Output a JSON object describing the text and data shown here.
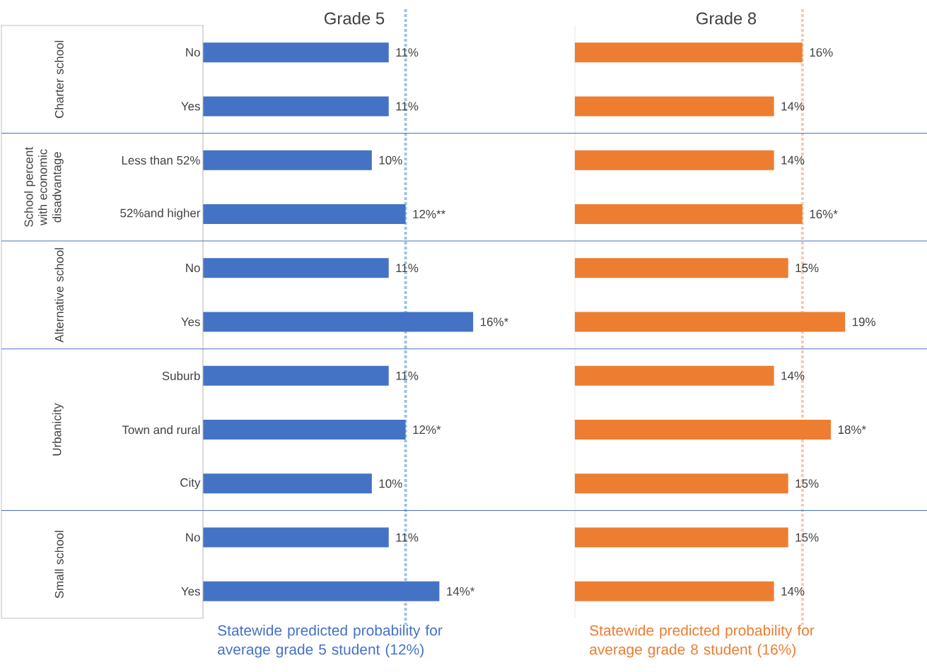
{
  "chart_data": [
    {
      "type": "bar",
      "orientation": "horizontal",
      "title": "Grade 5",
      "categories": [
        "No",
        "Yes",
        "Less than 52%",
        "52%and higher",
        "No",
        "Yes",
        "Suburb",
        "Town and rural",
        "City",
        "No",
        "Yes"
      ],
      "values": [
        11,
        11,
        10,
        12,
        11,
        16,
        11,
        12,
        10,
        11,
        14
      ],
      "value_labels": [
        "11%",
        "11%",
        "10%",
        "12%**",
        "11%",
        "16%*",
        "11%",
        "12%*",
        "10%",
        "11%",
        "14%*"
      ],
      "color": "#4472c4",
      "tick_labels": "y",
      "ref_lines": [
        {
          "axis": "x",
          "value": 12,
          "label": "Statewide predicted probability for average grade 5 student (12%)",
          "color": "#9dc3e6",
          "line_style": "dotted"
        }
      ],
      "annotations": [
        "Charter school",
        "School percent with economic disadvantage",
        "Alternative school",
        "Urbanicity",
        "Small school"
      ]
    },
    {
      "type": "bar",
      "orientation": "horizontal",
      "title": "Grade 8",
      "categories": [
        null,
        null,
        null,
        null,
        null,
        null,
        null,
        null,
        null,
        null,
        null
      ],
      "values": [
        16,
        14,
        14,
        16,
        15,
        19,
        14,
        18,
        15,
        15,
        14
      ],
      "value_labels": [
        "16%",
        "14%",
        "14%",
        "16%*",
        "15%",
        "19%",
        "14%",
        "18%*",
        "15%",
        "15%",
        "14%"
      ],
      "color": "#ed7d31",
      "tick_labels": false,
      "ref_lines": [
        {
          "axis": "x",
          "value": 16,
          "label": "Statewide predicted probability for average grade 8 student (16%)",
          "color": "#f8cbad",
          "line_style": "dotted"
        }
      ]
    }
  ]
}
